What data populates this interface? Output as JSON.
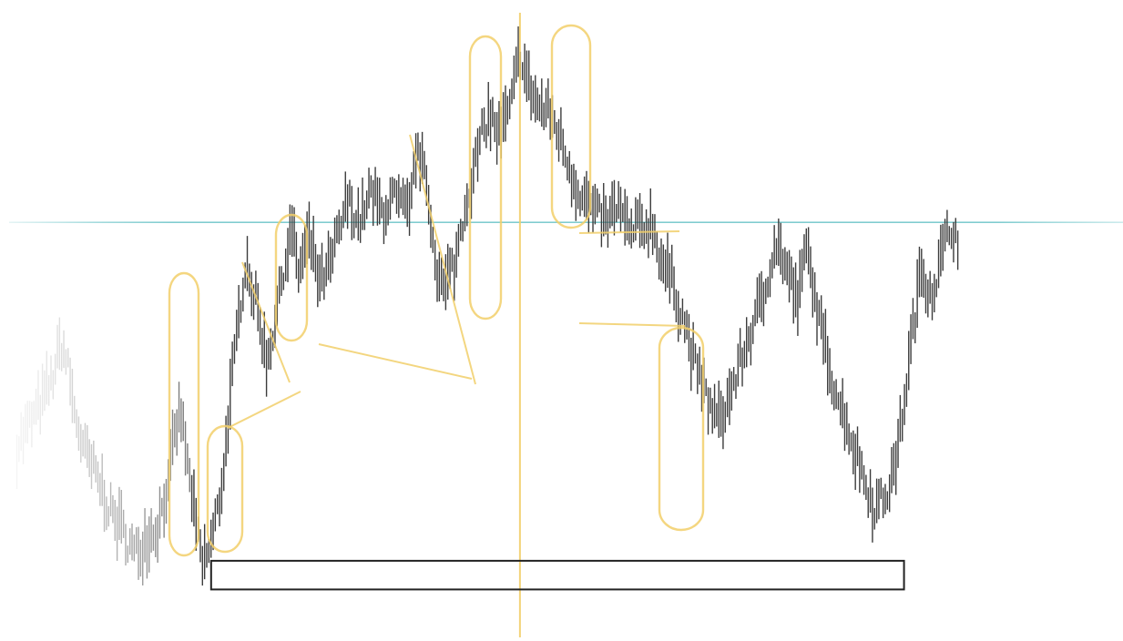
{
  "chart_data": {
    "type": "line",
    "title": "",
    "xlabel": "",
    "ylabel": "",
    "ylim": [
      0,
      100
    ],
    "xlim": [
      0,
      100
    ],
    "grid": false,
    "colors": {
      "price": "#3c3c3c",
      "highlight": "#f2cf6a",
      "level": "#6cc4c8",
      "zone": "#222222"
    },
    "series": [
      {
        "values": [
          [
            1.5,
            27
          ],
          [
            3,
            32
          ],
          [
            4.5,
            38
          ],
          [
            5.5,
            45
          ],
          [
            6,
            41
          ],
          [
            6.5,
            34
          ],
          [
            7.5,
            26
          ],
          [
            9,
            20
          ],
          [
            10,
            15
          ],
          [
            11,
            12
          ],
          [
            12,
            8
          ],
          [
            13,
            11
          ],
          [
            14,
            13
          ],
          [
            15,
            21
          ],
          [
            16,
            34
          ],
          [
            16.8,
            22
          ],
          [
            17.5,
            12
          ],
          [
            18,
            6
          ],
          [
            18.8,
            10
          ],
          [
            19.6,
            18
          ],
          [
            20.4,
            34
          ],
          [
            21.2,
            48
          ],
          [
            21.8,
            60
          ],
          [
            22.3,
            56
          ],
          [
            23,
            50
          ],
          [
            23.7,
            42
          ],
          [
            24.4,
            48
          ],
          [
            25.2,
            58
          ],
          [
            26,
            65
          ],
          [
            26.5,
            57
          ],
          [
            27.5,
            63
          ],
          [
            28.5,
            55
          ],
          [
            29.5,
            59
          ],
          [
            30.3,
            65
          ],
          [
            31,
            70
          ],
          [
            32,
            66
          ],
          [
            33,
            71
          ],
          [
            34,
            68
          ],
          [
            35,
            70
          ],
          [
            36.5,
            67
          ],
          [
            37,
            79
          ],
          [
            38,
            72
          ],
          [
            38.8,
            59
          ],
          [
            39.5,
            54
          ],
          [
            40.5,
            59
          ],
          [
            41.5,
            70
          ],
          [
            42.5,
            78
          ],
          [
            43.5,
            85
          ],
          [
            44.5,
            81
          ],
          [
            45.5,
            86
          ],
          [
            46.3,
            96
          ],
          [
            47,
            90
          ],
          [
            48,
            86
          ],
          [
            49,
            85
          ],
          [
            50,
            80
          ],
          [
            51,
            74
          ],
          [
            52,
            70
          ],
          [
            53,
            67
          ],
          [
            54,
            66
          ],
          [
            55,
            69
          ],
          [
            56,
            64
          ],
          [
            57,
            65
          ],
          [
            58,
            66
          ],
          [
            59,
            59
          ],
          [
            60,
            55
          ],
          [
            61,
            48
          ],
          [
            62,
            40
          ],
          [
            63,
            35
          ],
          [
            64,
            31
          ],
          [
            65,
            36
          ],
          [
            66,
            42
          ],
          [
            67,
            48
          ],
          [
            68,
            53
          ],
          [
            69,
            63
          ],
          [
            70,
            58
          ],
          [
            71,
            52
          ],
          [
            71.8,
            62
          ],
          [
            72.5,
            53
          ],
          [
            73,
            48
          ],
          [
            74,
            40
          ],
          [
            75,
            33
          ],
          [
            76,
            27
          ],
          [
            77,
            21
          ],
          [
            78,
            16
          ],
          [
            79,
            19
          ],
          [
            80,
            27
          ],
          [
            81,
            43
          ],
          [
            82,
            58
          ],
          [
            83,
            54
          ],
          [
            84,
            61
          ],
          [
            84.8,
            66
          ],
          [
            85.3,
            62
          ]
        ]
      }
    ],
    "annotations": {
      "horizontal_level_y": 66,
      "vertical_line_x": 46.3,
      "zone": {
        "x_range": [
          18.8,
          80.5
        ],
        "y_range": [
          2,
          7
        ]
      }
    }
  }
}
